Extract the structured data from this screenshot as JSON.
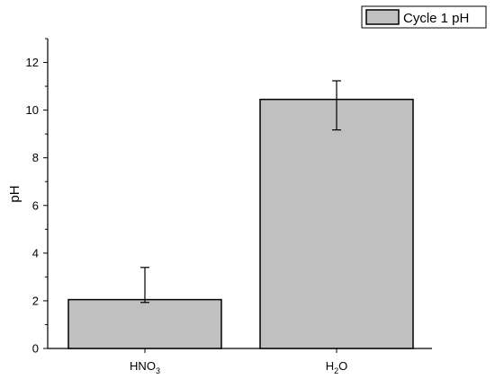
{
  "chart_data": {
    "type": "bar",
    "categories": [
      "HNO3",
      "H2O"
    ],
    "category_display": [
      {
        "base": "HNO",
        "sub": "3"
      },
      {
        "base": "H",
        "sub": "2",
        "rest": "O"
      }
    ],
    "series": [
      {
        "name": "Cycle 1 pH",
        "values": [
          2.05,
          10.45
        ],
        "error_plus": [
          1.35,
          0.78
        ],
        "error_minus": [
          0.12,
          1.28
        ],
        "color": "#c0c0c0"
      }
    ],
    "title": "",
    "xlabel": "",
    "ylabel": "pH",
    "ylim": [
      0,
      13
    ],
    "yticks": [
      0,
      2,
      4,
      6,
      8,
      10,
      12
    ],
    "grid": false,
    "legend": {
      "position": "top-right",
      "label": "Cycle 1 pH"
    }
  }
}
